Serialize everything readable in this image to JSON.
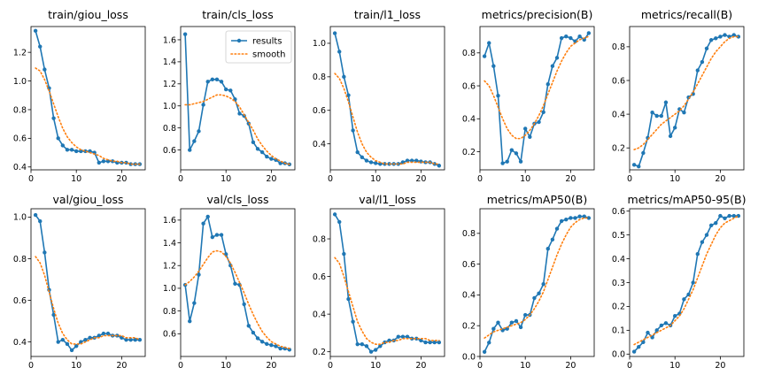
{
  "colors": {
    "results": "#1f77b4",
    "smooth": "#ff7f0e",
    "axis": "#000000"
  },
  "legend": {
    "results_label": "results",
    "smooth_label": "smooth",
    "placement": "upper-right of panel 2"
  },
  "chart_data": [
    {
      "type": "line",
      "title": "train/giou_loss",
      "xlim": [
        0,
        25.2
      ],
      "ylim": [
        0.38,
        1.38
      ],
      "xticks": [
        0,
        10,
        20
      ],
      "xtick_labels": [
        "0",
        "10",
        "20"
      ],
      "yticks": [
        0.4,
        0.6,
        0.8,
        1.0,
        1.2
      ],
      "ytick_labels": [
        "0.4",
        "0.6",
        "0.8",
        "1.0",
        "1.2"
      ],
      "x": [
        1,
        2,
        3,
        4,
        5,
        6,
        7,
        8,
        9,
        10,
        11,
        12,
        13,
        14,
        15,
        16,
        17,
        18,
        19,
        20,
        21,
        22,
        23,
        24
      ],
      "series": [
        {
          "name": "results",
          "values": [
            1.35,
            1.24,
            1.08,
            0.95,
            0.74,
            0.6,
            0.55,
            0.52,
            0.52,
            0.51,
            0.51,
            0.51,
            0.51,
            0.5,
            0.43,
            0.44,
            0.44,
            0.44,
            0.43,
            0.43,
            0.43,
            0.42,
            0.42,
            0.42
          ]
        },
        {
          "name": "smooth",
          "values": [
            1.09,
            1.07,
            1.01,
            0.93,
            0.84,
            0.75,
            0.67,
            0.61,
            0.57,
            0.54,
            0.52,
            0.51,
            0.5,
            0.49,
            0.48,
            0.46,
            0.45,
            0.44,
            0.44,
            0.43,
            0.43,
            0.42,
            0.42,
            0.42
          ]
        }
      ]
    },
    {
      "type": "line",
      "title": "train/cls_loss",
      "xlim": [
        0,
        25.2
      ],
      "ylim": [
        0.42,
        1.72
      ],
      "xticks": [
        0,
        10,
        20
      ],
      "xtick_labels": [
        "0",
        "10",
        "20"
      ],
      "yticks": [
        0.6,
        0.8,
        1.0,
        1.2,
        1.4,
        1.6
      ],
      "ytick_labels": [
        "0.6",
        "0.8",
        "1.0",
        "1.2",
        "1.4",
        "1.6"
      ],
      "x": [
        1,
        2,
        3,
        4,
        5,
        6,
        7,
        8,
        9,
        10,
        11,
        12,
        13,
        14,
        15,
        16,
        17,
        18,
        19,
        20,
        21,
        22,
        23,
        24
      ],
      "series": [
        {
          "name": "results",
          "values": [
            1.65,
            0.6,
            0.68,
            0.77,
            1.01,
            1.22,
            1.24,
            1.24,
            1.22,
            1.15,
            1.14,
            1.06,
            0.93,
            0.91,
            0.84,
            0.67,
            0.61,
            0.58,
            0.54,
            0.52,
            0.51,
            0.48,
            0.48,
            0.47
          ]
        },
        {
          "name": "smooth",
          "values": [
            1.01,
            1.01,
            1.02,
            1.03,
            1.04,
            1.06,
            1.08,
            1.1,
            1.1,
            1.09,
            1.07,
            1.04,
            0.99,
            0.92,
            0.85,
            0.78,
            0.7,
            0.64,
            0.59,
            0.55,
            0.52,
            0.5,
            0.48,
            0.47
          ]
        }
      ]
    },
    {
      "type": "line",
      "title": "train/l1_loss",
      "xlim": [
        0,
        25.2
      ],
      "ylim": [
        0.245,
        1.1
      ],
      "xticks": [
        0,
        10,
        20
      ],
      "xtick_labels": [
        "0",
        "10",
        "20"
      ],
      "yticks": [
        0.4,
        0.6,
        0.8,
        1.0
      ],
      "ytick_labels": [
        "0.4",
        "0.6",
        "0.8",
        "1.0"
      ],
      "x": [
        1,
        2,
        3,
        4,
        5,
        6,
        7,
        8,
        9,
        10,
        11,
        12,
        13,
        14,
        15,
        16,
        17,
        18,
        19,
        20,
        21,
        22,
        23,
        24
      ],
      "series": [
        {
          "name": "results",
          "values": [
            1.06,
            0.95,
            0.8,
            0.69,
            0.48,
            0.35,
            0.32,
            0.3,
            0.29,
            0.285,
            0.28,
            0.28,
            0.28,
            0.28,
            0.28,
            0.29,
            0.3,
            0.3,
            0.3,
            0.295,
            0.29,
            0.29,
            0.28,
            0.27
          ]
        },
        {
          "name": "smooth",
          "values": [
            0.82,
            0.79,
            0.73,
            0.65,
            0.56,
            0.47,
            0.4,
            0.35,
            0.32,
            0.3,
            0.29,
            0.28,
            0.28,
            0.28,
            0.28,
            0.28,
            0.29,
            0.29,
            0.29,
            0.29,
            0.29,
            0.29,
            0.28,
            0.28
          ]
        }
      ]
    },
    {
      "type": "line",
      "title": "metrics/precision(B)",
      "xlim": [
        0,
        25.2
      ],
      "ylim": [
        0.09,
        0.96
      ],
      "xticks": [
        0,
        10,
        20
      ],
      "xtick_labels": [
        "0",
        "10",
        "20"
      ],
      "yticks": [
        0.2,
        0.4,
        0.6,
        0.8
      ],
      "ytick_labels": [
        "0.2",
        "0.4",
        "0.6",
        "0.8"
      ],
      "x": [
        1,
        2,
        3,
        4,
        5,
        6,
        7,
        8,
        9,
        10,
        11,
        12,
        13,
        14,
        15,
        16,
        17,
        18,
        19,
        20,
        21,
        22,
        23,
        24
      ],
      "series": [
        {
          "name": "results",
          "values": [
            0.78,
            0.86,
            0.72,
            0.54,
            0.13,
            0.14,
            0.21,
            0.19,
            0.14,
            0.34,
            0.29,
            0.37,
            0.38,
            0.44,
            0.61,
            0.72,
            0.77,
            0.89,
            0.9,
            0.89,
            0.87,
            0.9,
            0.88,
            0.92
          ]
        },
        {
          "name": "smooth",
          "values": [
            0.63,
            0.6,
            0.54,
            0.47,
            0.4,
            0.34,
            0.3,
            0.28,
            0.28,
            0.3,
            0.33,
            0.37,
            0.42,
            0.48,
            0.55,
            0.62,
            0.69,
            0.75,
            0.8,
            0.84,
            0.86,
            0.88,
            0.89,
            0.9
          ]
        }
      ]
    },
    {
      "type": "line",
      "title": "metrics/recall(B)",
      "xlim": [
        0,
        25.2
      ],
      "ylim": [
        0.07,
        0.92
      ],
      "xticks": [
        0,
        10,
        20
      ],
      "xtick_labels": [
        "0",
        "10",
        "20"
      ],
      "yticks": [
        0.2,
        0.4,
        0.6,
        0.8
      ],
      "ytick_labels": [
        "0.2",
        "0.4",
        "0.6",
        "0.8"
      ],
      "x": [
        1,
        2,
        3,
        4,
        5,
        6,
        7,
        8,
        9,
        10,
        11,
        12,
        13,
        14,
        15,
        16,
        17,
        18,
        19,
        20,
        21,
        22,
        23,
        24
      ],
      "series": [
        {
          "name": "results",
          "values": [
            0.1,
            0.09,
            0.17,
            0.26,
            0.41,
            0.39,
            0.39,
            0.47,
            0.27,
            0.32,
            0.43,
            0.41,
            0.5,
            0.52,
            0.66,
            0.71,
            0.79,
            0.84,
            0.85,
            0.86,
            0.87,
            0.86,
            0.87,
            0.86
          ]
        },
        {
          "name": "smooth",
          "values": [
            0.19,
            0.2,
            0.22,
            0.25,
            0.28,
            0.31,
            0.34,
            0.36,
            0.38,
            0.4,
            0.42,
            0.45,
            0.49,
            0.53,
            0.58,
            0.63,
            0.68,
            0.73,
            0.77,
            0.8,
            0.83,
            0.85,
            0.86,
            0.86
          ]
        }
      ]
    },
    {
      "type": "line",
      "title": "val/giou_loss",
      "xlim": [
        0,
        25.2
      ],
      "ylim": [
        0.33,
        1.04
      ],
      "xticks": [
        0,
        10,
        20
      ],
      "xtick_labels": [
        "0",
        "10",
        "20"
      ],
      "yticks": [
        0.4,
        0.6,
        0.8,
        1.0
      ],
      "ytick_labels": [
        "0.4",
        "0.6",
        "0.8",
        "1.0"
      ],
      "x": [
        1,
        2,
        3,
        4,
        5,
        6,
        7,
        8,
        9,
        10,
        11,
        12,
        13,
        14,
        15,
        16,
        17,
        18,
        19,
        20,
        21,
        22,
        23,
        24
      ],
      "series": [
        {
          "name": "results",
          "values": [
            1.01,
            0.98,
            0.83,
            0.65,
            0.53,
            0.4,
            0.41,
            0.39,
            0.36,
            0.38,
            0.4,
            0.41,
            0.42,
            0.42,
            0.43,
            0.44,
            0.44,
            0.43,
            0.43,
            0.42,
            0.41,
            0.41,
            0.41,
            0.41
          ]
        },
        {
          "name": "smooth",
          "values": [
            0.81,
            0.78,
            0.72,
            0.64,
            0.56,
            0.49,
            0.44,
            0.41,
            0.39,
            0.39,
            0.39,
            0.4,
            0.41,
            0.42,
            0.42,
            0.43,
            0.43,
            0.43,
            0.43,
            0.43,
            0.42,
            0.42,
            0.42,
            0.41
          ]
        }
      ]
    },
    {
      "type": "line",
      "title": "val/cls_loss",
      "xlim": [
        0,
        25.2
      ],
      "ylim": [
        0.4,
        1.7
      ],
      "xticks": [
        0,
        10,
        20
      ],
      "xtick_labels": [
        "0",
        "10",
        "20"
      ],
      "yticks": [
        0.6,
        0.8,
        1.0,
        1.2,
        1.4,
        1.6
      ],
      "ytick_labels": [
        "0.6",
        "0.8",
        "1.0",
        "1.2",
        "1.4",
        "1.6"
      ],
      "x": [
        1,
        2,
        3,
        4,
        5,
        6,
        7,
        8,
        9,
        10,
        11,
        12,
        13,
        14,
        15,
        16,
        17,
        18,
        19,
        20,
        21,
        22,
        23,
        24
      ],
      "series": [
        {
          "name": "results",
          "values": [
            1.03,
            0.71,
            0.87,
            1.12,
            1.57,
            1.63,
            1.45,
            1.47,
            1.47,
            1.3,
            1.2,
            1.04,
            1.03,
            0.86,
            0.67,
            0.61,
            0.56,
            0.53,
            0.51,
            0.5,
            0.49,
            0.47,
            0.47,
            0.46
          ]
        },
        {
          "name": "smooth",
          "values": [
            1.03,
            1.06,
            1.1,
            1.15,
            1.21,
            1.27,
            1.32,
            1.33,
            1.32,
            1.28,
            1.22,
            1.14,
            1.05,
            0.96,
            0.86,
            0.77,
            0.69,
            0.62,
            0.57,
            0.53,
            0.51,
            0.49,
            0.48,
            0.47
          ]
        }
      ]
    },
    {
      "type": "line",
      "title": "val/l1_loss",
      "xlim": [
        0,
        25.2
      ],
      "ylim": [
        0.175,
        0.96
      ],
      "xticks": [
        0,
        10,
        20
      ],
      "xtick_labels": [
        "0",
        "10",
        "20"
      ],
      "yticks": [
        0.2,
        0.4,
        0.6,
        0.8
      ],
      "ytick_labels": [
        "0.2",
        "0.4",
        "0.6",
        "0.8"
      ],
      "x": [
        1,
        2,
        3,
        4,
        5,
        6,
        7,
        8,
        9,
        10,
        11,
        12,
        13,
        14,
        15,
        16,
        17,
        18,
        19,
        20,
        21,
        22,
        23,
        24
      ],
      "series": [
        {
          "name": "results",
          "values": [
            0.93,
            0.89,
            0.72,
            0.48,
            0.36,
            0.24,
            0.24,
            0.23,
            0.2,
            0.21,
            0.23,
            0.25,
            0.26,
            0.26,
            0.28,
            0.28,
            0.28,
            0.27,
            0.27,
            0.26,
            0.25,
            0.25,
            0.25,
            0.25
          ]
        },
        {
          "name": "smooth",
          "values": [
            0.7,
            0.67,
            0.6,
            0.52,
            0.44,
            0.36,
            0.31,
            0.27,
            0.25,
            0.24,
            0.24,
            0.25,
            0.25,
            0.26,
            0.26,
            0.27,
            0.27,
            0.27,
            0.27,
            0.27,
            0.27,
            0.26,
            0.26,
            0.26
          ]
        }
      ]
    },
    {
      "type": "line",
      "title": "metrics/mAP50(B)",
      "xlim": [
        0,
        25.2
      ],
      "ylim": [
        0.0,
        0.96
      ],
      "xticks": [
        0,
        10,
        20
      ],
      "xtick_labels": [
        "0",
        "10",
        "20"
      ],
      "yticks": [
        0.0,
        0.2,
        0.4,
        0.6,
        0.8
      ],
      "ytick_labels": [
        "0.0",
        "0.2",
        "0.4",
        "0.6",
        "0.8"
      ],
      "x": [
        1,
        2,
        3,
        4,
        5,
        6,
        7,
        8,
        9,
        10,
        11,
        12,
        13,
        14,
        15,
        16,
        17,
        18,
        19,
        20,
        21,
        22,
        23,
        24
      ],
      "series": [
        {
          "name": "results",
          "values": [
            0.03,
            0.09,
            0.18,
            0.22,
            0.17,
            0.18,
            0.22,
            0.23,
            0.19,
            0.27,
            0.27,
            0.38,
            0.41,
            0.47,
            0.7,
            0.76,
            0.83,
            0.88,
            0.89,
            0.9,
            0.9,
            0.91,
            0.91,
            0.9
          ]
        },
        {
          "name": "smooth",
          "values": [
            0.12,
            0.14,
            0.16,
            0.17,
            0.18,
            0.19,
            0.2,
            0.21,
            0.22,
            0.24,
            0.27,
            0.31,
            0.36,
            0.42,
            0.5,
            0.58,
            0.66,
            0.73,
            0.79,
            0.84,
            0.87,
            0.89,
            0.9,
            0.9
          ]
        }
      ]
    },
    {
      "type": "line",
      "title": "metrics/mAP50-95(B)",
      "xlim": [
        0,
        25.2
      ],
      "ylim": [
        -0.01,
        0.61
      ],
      "xticks": [
        0,
        10,
        20
      ],
      "xtick_labels": [
        "0",
        "10",
        "20"
      ],
      "yticks": [
        0.0,
        0.1,
        0.2,
        0.3,
        0.4,
        0.5,
        0.6
      ],
      "ytick_labels": [
        "0.0",
        "0.1",
        "0.2",
        "0.3",
        "0.4",
        "0.5",
        "0.6"
      ],
      "x": [
        1,
        2,
        3,
        4,
        5,
        6,
        7,
        8,
        9,
        10,
        11,
        12,
        13,
        14,
        15,
        16,
        17,
        18,
        19,
        20,
        21,
        22,
        23,
        24
      ],
      "series": [
        {
          "name": "results",
          "values": [
            0.01,
            0.03,
            0.05,
            0.09,
            0.07,
            0.1,
            0.12,
            0.13,
            0.12,
            0.16,
            0.17,
            0.23,
            0.25,
            0.3,
            0.42,
            0.47,
            0.5,
            0.54,
            0.55,
            0.58,
            0.57,
            0.58,
            0.58,
            0.58
          ]
        },
        {
          "name": "smooth",
          "values": [
            0.04,
            0.05,
            0.06,
            0.07,
            0.08,
            0.09,
            0.1,
            0.11,
            0.12,
            0.14,
            0.16,
            0.19,
            0.23,
            0.27,
            0.32,
            0.37,
            0.42,
            0.46,
            0.5,
            0.53,
            0.55,
            0.56,
            0.57,
            0.58
          ]
        }
      ]
    }
  ]
}
